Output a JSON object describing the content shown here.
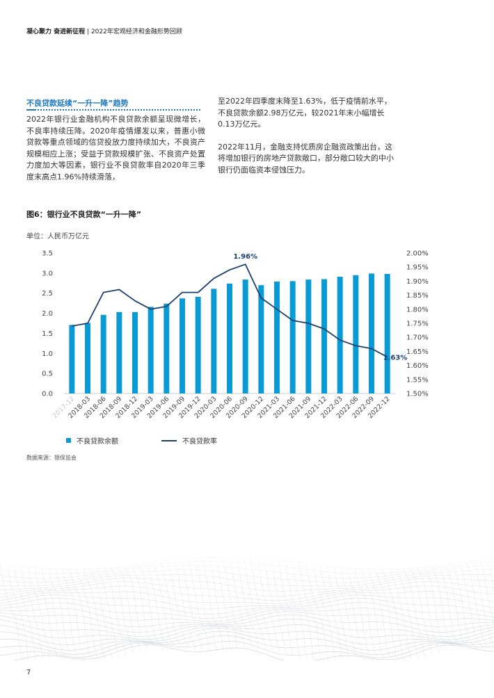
{
  "header": {
    "left_bold": "凝心聚力 奋进新征程",
    "separator": "|",
    "right": "2022年宏观经济和金融形势回顾"
  },
  "section": {
    "title": "不良贷款延续“一升一降”趋势",
    "left_para": "2022年银行业金融机构不良贷款余额呈现微增长，不良率持续压降。2020年疫情爆发以来，普惠小微贷款等重点领域的信贷投放力度持续加大，不良资产规模相应上涨；受益于贷款规模扩张、不良资产处置力度加大等因素，银行业不良贷款率自2020年三季度末高点1.96%持续滑落，",
    "right_para1": "至2022年四季度末降至1.63%，低于疫情前水平，不良贷款余额2.98万亿元，较2021年末小幅增长0.13万亿元。",
    "right_para2": "2022年11月，金融支持优质房企融资政策出台，这将增加银行的房地产贷款敞口，部分敞口较大的中小银行仍面临资本侵蚀压力。"
  },
  "figure": {
    "title": "图6：银行业不良贷款“一升一降”",
    "unit": "单位：人民币万亿元",
    "source": "数据来源：银保监会"
  },
  "chart_data": {
    "type": "bar",
    "categories": [
      "2017-12",
      "2018-03",
      "2018-06",
      "2018-09",
      "2018-12",
      "2019-03",
      "2019-06",
      "2019-09",
      "2019-12",
      "2020-03",
      "2020-06",
      "2020-09",
      "2020-12",
      "2021-03",
      "2021-06",
      "2021-09",
      "2021-12",
      "2022-03",
      "2022-06",
      "2022-09",
      "2022-12"
    ],
    "series": [
      {
        "name": "不良贷款余额",
        "type": "bar",
        "axis": "left",
        "values": [
          1.71,
          1.76,
          1.96,
          2.03,
          2.03,
          2.16,
          2.24,
          2.37,
          2.41,
          2.61,
          2.74,
          2.84,
          2.7,
          2.79,
          2.8,
          2.84,
          2.85,
          2.91,
          2.95,
          2.99,
          2.98
        ]
      },
      {
        "name": "不良贷款率",
        "type": "line",
        "axis": "right",
        "values": [
          1.74,
          1.75,
          1.86,
          1.87,
          1.83,
          1.8,
          1.81,
          1.86,
          1.86,
          1.91,
          1.94,
          1.96,
          1.84,
          1.8,
          1.76,
          1.75,
          1.73,
          1.69,
          1.67,
          1.66,
          1.63
        ]
      }
    ],
    "left_axis": {
      "ylim": [
        0,
        3.5
      ],
      "ticks": [
        "0.0",
        "0.5",
        "1.0",
        "1.5",
        "2.0",
        "2.5",
        "3.0",
        "3.5"
      ]
    },
    "right_axis": {
      "ylim": [
        1.5,
        2.0
      ],
      "ticks": [
        "1.50%",
        "1.55%",
        "1.60%",
        "1.65%",
        "1.70%",
        "1.75%",
        "1.80%",
        "1.85%",
        "1.90%",
        "1.95%",
        "2.00%"
      ]
    },
    "annotations": [
      {
        "series": "不良贷款率",
        "index": 11,
        "text": "1.96%"
      },
      {
        "series": "不良贷款率",
        "index": 20,
        "text": "1.63%"
      }
    ],
    "legend_position": "bottom-left",
    "grid": false,
    "colors": {
      "bar": "#0a9ad6",
      "line": "#1a3f6e",
      "annotation": "#1a3f6e"
    }
  },
  "page_number": "7"
}
